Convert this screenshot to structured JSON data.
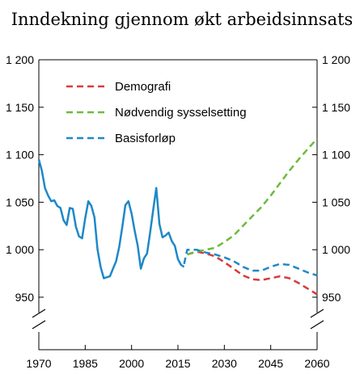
{
  "chart_data": {
    "type": "line",
    "title": "Inndekning gjennom økt arbeidsinnsats",
    "xlabel": "",
    "ylabel": "",
    "xlim": [
      1970,
      2060
    ],
    "ylim": [
      900,
      1200
    ],
    "x_ticks": [
      "1970",
      "1985",
      "2000",
      "2015",
      "2030",
      "2045",
      "2060"
    ],
    "y_ticks": [
      "950",
      "1 000",
      "1 050",
      "1 100",
      "1 150",
      "1 200"
    ],
    "y_axis_break": true,
    "legend_position": "top-left",
    "grid": false,
    "series": [
      {
        "name": "Demografi",
        "color": "#d63b3b",
        "style": "dashed",
        "points": [
          [
            2018,
            995
          ],
          [
            2021,
            998
          ],
          [
            2024,
            996
          ],
          [
            2027,
            993
          ],
          [
            2030,
            987
          ],
          [
            2033,
            980
          ],
          [
            2036,
            973
          ],
          [
            2039,
            969
          ],
          [
            2042,
            968
          ],
          [
            2045,
            970
          ],
          [
            2048,
            972
          ],
          [
            2051,
            970
          ],
          [
            2054,
            965
          ],
          [
            2057,
            959
          ],
          [
            2060,
            953
          ]
        ]
      },
      {
        "name": "Nødvendig sysselsetting",
        "color": "#6cbb3c",
        "style": "dashed",
        "points": [
          [
            2018,
            995
          ],
          [
            2021,
            998
          ],
          [
            2024,
            1000
          ],
          [
            2027,
            1002
          ],
          [
            2030,
            1008
          ],
          [
            2033,
            1015
          ],
          [
            2036,
            1025
          ],
          [
            2039,
            1035
          ],
          [
            2042,
            1045
          ],
          [
            2045,
            1057
          ],
          [
            2048,
            1070
          ],
          [
            2051,
            1083
          ],
          [
            2054,
            1095
          ],
          [
            2057,
            1106
          ],
          [
            2060,
            1117
          ]
        ]
      },
      {
        "name": "Basisforløp",
        "color": "#1e88c8",
        "style": "dashed",
        "points": [
          [
            2017,
            985
          ],
          [
            2018,
            1000
          ],
          [
            2021,
            1000
          ],
          [
            2024,
            997
          ],
          [
            2027,
            995
          ],
          [
            2030,
            992
          ],
          [
            2033,
            988
          ],
          [
            2036,
            982
          ],
          [
            2039,
            978
          ],
          [
            2042,
            978
          ],
          [
            2045,
            982
          ],
          [
            2048,
            985
          ],
          [
            2051,
            984
          ],
          [
            2054,
            980
          ],
          [
            2057,
            976
          ],
          [
            2060,
            973
          ]
        ]
      },
      {
        "name": "",
        "color": "#1e88c8",
        "style": "solid",
        "points": [
          [
            1970,
            1095
          ],
          [
            1971,
            1083
          ],
          [
            1972,
            1065
          ],
          [
            1973,
            1057
          ],
          [
            1974,
            1051
          ],
          [
            1975,
            1052
          ],
          [
            1976,
            1046
          ],
          [
            1977,
            1044
          ],
          [
            1978,
            1031
          ],
          [
            1979,
            1026
          ],
          [
            1980,
            1044
          ],
          [
            1981,
            1043
          ],
          [
            1982,
            1024
          ],
          [
            1983,
            1014
          ],
          [
            1984,
            1012
          ],
          [
            1985,
            1033
          ],
          [
            1986,
            1051
          ],
          [
            1987,
            1046
          ],
          [
            1988,
            1034
          ],
          [
            1989,
            1000
          ],
          [
            1990,
            982
          ],
          [
            1991,
            970
          ],
          [
            1992,
            971
          ],
          [
            1993,
            972
          ],
          [
            1994,
            980
          ],
          [
            1995,
            988
          ],
          [
            1996,
            1003
          ],
          [
            1997,
            1024
          ],
          [
            1998,
            1047
          ],
          [
            1999,
            1051
          ],
          [
            2000,
            1038
          ],
          [
            2001,
            1020
          ],
          [
            2002,
            1004
          ],
          [
            2003,
            980
          ],
          [
            2004,
            991
          ],
          [
            2005,
            996
          ],
          [
            2006,
            1018
          ],
          [
            2007,
            1042
          ],
          [
            2008,
            1065
          ],
          [
            2009,
            1027
          ],
          [
            2010,
            1013
          ],
          [
            2011,
            1015
          ],
          [
            2012,
            1018
          ],
          [
            2013,
            1009
          ],
          [
            2014,
            1004
          ],
          [
            2015,
            990
          ],
          [
            2016,
            984
          ],
          [
            2017,
            982
          ]
        ]
      }
    ]
  }
}
